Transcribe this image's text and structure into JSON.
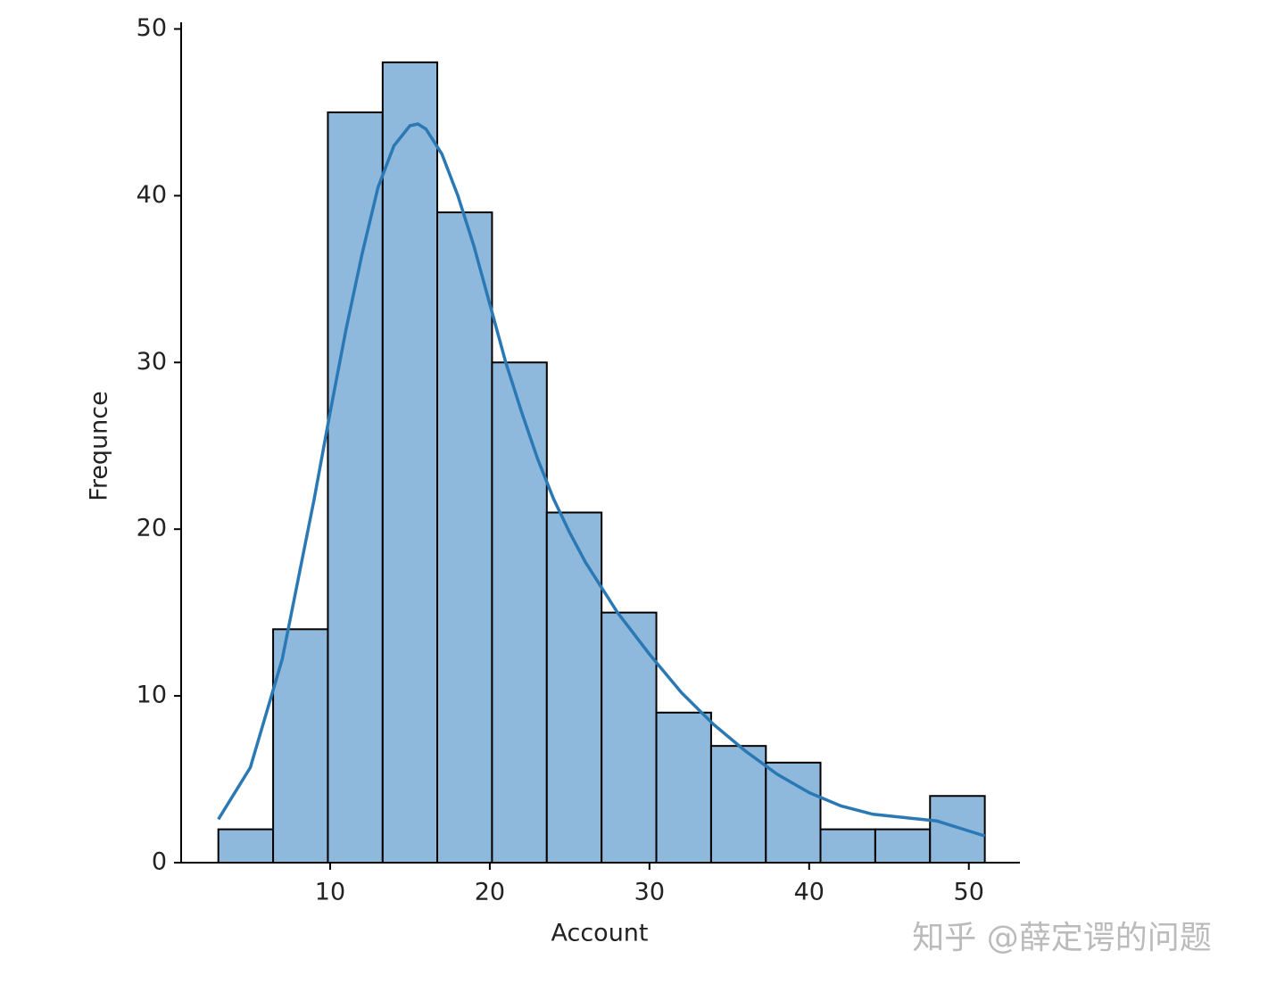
{
  "chart_data": {
    "type": "histogram",
    "x_label": "Account",
    "y_label": "Frequnce",
    "watermark": "知乎 @薛定谔的问题",
    "bins": [
      3,
      6.43,
      9.86,
      13.29,
      16.71,
      20.14,
      23.57,
      27,
      30.43,
      33.86,
      37.29,
      40.71,
      44.14,
      47.57,
      51
    ],
    "values": [
      2,
      14,
      45,
      48,
      39,
      30,
      21,
      15,
      9,
      7,
      6,
      2,
      2,
      4
    ],
    "color": "#8fb9dc",
    "edge_color": "#000000",
    "kde": {
      "color": "#2a78b4",
      "x": [
        3,
        5,
        7,
        9,
        10,
        11,
        12,
        13,
        14,
        15,
        15.5,
        16,
        17,
        18,
        19,
        20,
        21,
        22,
        23,
        24,
        25,
        26,
        28,
        30,
        32,
        34,
        36,
        38,
        40,
        42,
        44,
        46,
        48,
        50,
        51
      ],
      "y": [
        2.6,
        5.7,
        12.2,
        21.8,
        27,
        32,
        36.5,
        40.5,
        43,
        44.2,
        44.3,
        44,
        42.5,
        40,
        37,
        33.5,
        30,
        27,
        24.2,
        21.8,
        19.8,
        18,
        15,
        12.5,
        10.2,
        8.3,
        6.7,
        5.3,
        4.2,
        3.4,
        2.9,
        2.7,
        2.5,
        1.9,
        1.6
      ]
    },
    "xlim": [
      0.67,
      53.2
    ],
    "ylim": [
      0,
      50.4
    ],
    "xticks": [
      10,
      20,
      30,
      40,
      50
    ],
    "yticks": [
      0,
      10,
      20,
      30,
      40,
      50
    ]
  }
}
